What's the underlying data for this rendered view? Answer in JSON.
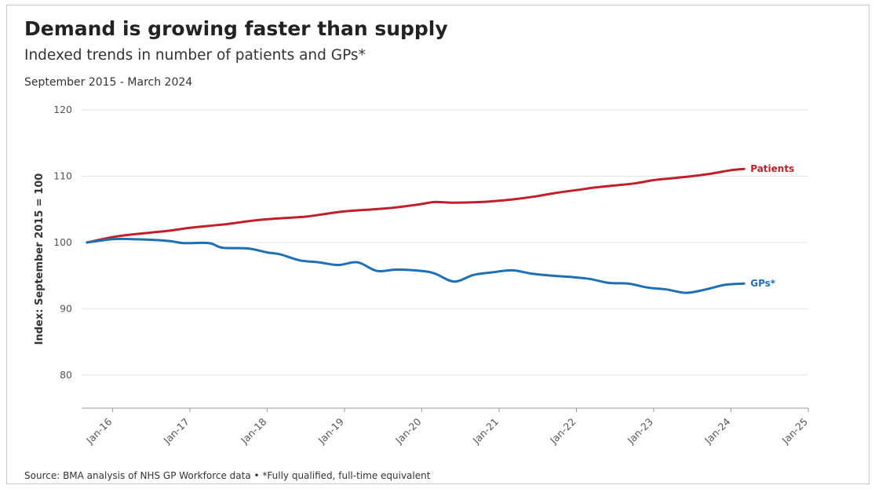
{
  "header": {
    "title": "Demand is growing faster than supply",
    "subtitle": "Indexed trends in number of patients and GPs*",
    "date_range": "September 2015 - March 2024"
  },
  "footer": {
    "source": "Source: BMA analysis of NHS GP Workforce data • *Fully qualified, full-time equivalent"
  },
  "chart_data": {
    "type": "line",
    "title": "Demand is growing faster than supply",
    "subtitle": "Indexed trends in number of patients and GPs*",
    "xlabel": "",
    "ylabel": "Index: September 2015 = 100",
    "ylim": [
      75,
      120
    ],
    "yticks": [
      80,
      90,
      100,
      110,
      120
    ],
    "xlim": [
      2015.6,
      2025.0
    ],
    "xticks": [
      {
        "value": 2016,
        "label": "Jan-16"
      },
      {
        "value": 2017,
        "label": "Jan-17"
      },
      {
        "value": 2018,
        "label": "Jan-18"
      },
      {
        "value": 2019,
        "label": "Jan-19"
      },
      {
        "value": 2020,
        "label": "Jan-20"
      },
      {
        "value": 2021,
        "label": "Jan-21"
      },
      {
        "value": 2022,
        "label": "Jan-22"
      },
      {
        "value": 2023,
        "label": "Jan-23"
      },
      {
        "value": 2024,
        "label": "Jan-24"
      },
      {
        "value": 2025,
        "label": "Jan-25"
      }
    ],
    "grid": "horizontal",
    "series": [
      {
        "name": "Patients",
        "color": "#c0202a",
        "points": [
          [
            2015.67,
            100.0
          ],
          [
            2016.0,
            100.8
          ],
          [
            2016.25,
            101.2
          ],
          [
            2016.5,
            101.5
          ],
          [
            2016.75,
            101.8
          ],
          [
            2017.0,
            102.2
          ],
          [
            2017.25,
            102.5
          ],
          [
            2017.5,
            102.8
          ],
          [
            2017.75,
            103.2
          ],
          [
            2018.0,
            103.5
          ],
          [
            2018.25,
            103.7
          ],
          [
            2018.5,
            103.9
          ],
          [
            2018.75,
            104.3
          ],
          [
            2019.0,
            104.7
          ],
          [
            2019.25,
            104.9
          ],
          [
            2019.5,
            105.1
          ],
          [
            2019.75,
            105.4
          ],
          [
            2020.0,
            105.8
          ],
          [
            2020.17,
            106.1
          ],
          [
            2020.42,
            106.0
          ],
          [
            2020.75,
            106.1
          ],
          [
            2021.0,
            106.3
          ],
          [
            2021.25,
            106.6
          ],
          [
            2021.5,
            107.0
          ],
          [
            2021.75,
            107.5
          ],
          [
            2022.0,
            107.9
          ],
          [
            2022.25,
            108.3
          ],
          [
            2022.5,
            108.6
          ],
          [
            2022.75,
            108.9
          ],
          [
            2023.0,
            109.4
          ],
          [
            2023.25,
            109.7
          ],
          [
            2023.5,
            110.0
          ],
          [
            2023.75,
            110.4
          ],
          [
            2024.0,
            110.9
          ],
          [
            2024.17,
            111.1
          ]
        ]
      },
      {
        "name": "GPs*",
        "color": "#1f6fb5",
        "points": [
          [
            2015.67,
            100.0
          ],
          [
            2016.0,
            100.5
          ],
          [
            2016.25,
            100.5
          ],
          [
            2016.5,
            100.4
          ],
          [
            2016.75,
            100.2
          ],
          [
            2016.92,
            99.9
          ],
          [
            2017.25,
            99.9
          ],
          [
            2017.42,
            99.2
          ],
          [
            2017.75,
            99.1
          ],
          [
            2018.0,
            98.5
          ],
          [
            2018.17,
            98.2
          ],
          [
            2018.42,
            97.3
          ],
          [
            2018.67,
            97.0
          ],
          [
            2018.92,
            96.6
          ],
          [
            2019.17,
            97.0
          ],
          [
            2019.42,
            95.7
          ],
          [
            2019.67,
            95.9
          ],
          [
            2020.0,
            95.7
          ],
          [
            2020.17,
            95.3
          ],
          [
            2020.42,
            94.1
          ],
          [
            2020.67,
            95.1
          ],
          [
            2020.92,
            95.5
          ],
          [
            2021.17,
            95.8
          ],
          [
            2021.42,
            95.3
          ],
          [
            2021.67,
            95.0
          ],
          [
            2021.92,
            94.8
          ],
          [
            2022.17,
            94.5
          ],
          [
            2022.42,
            93.9
          ],
          [
            2022.67,
            93.8
          ],
          [
            2022.92,
            93.2
          ],
          [
            2023.17,
            92.9
          ],
          [
            2023.42,
            92.4
          ],
          [
            2023.67,
            92.9
          ],
          [
            2023.92,
            93.6
          ],
          [
            2024.17,
            93.8
          ]
        ]
      }
    ]
  }
}
